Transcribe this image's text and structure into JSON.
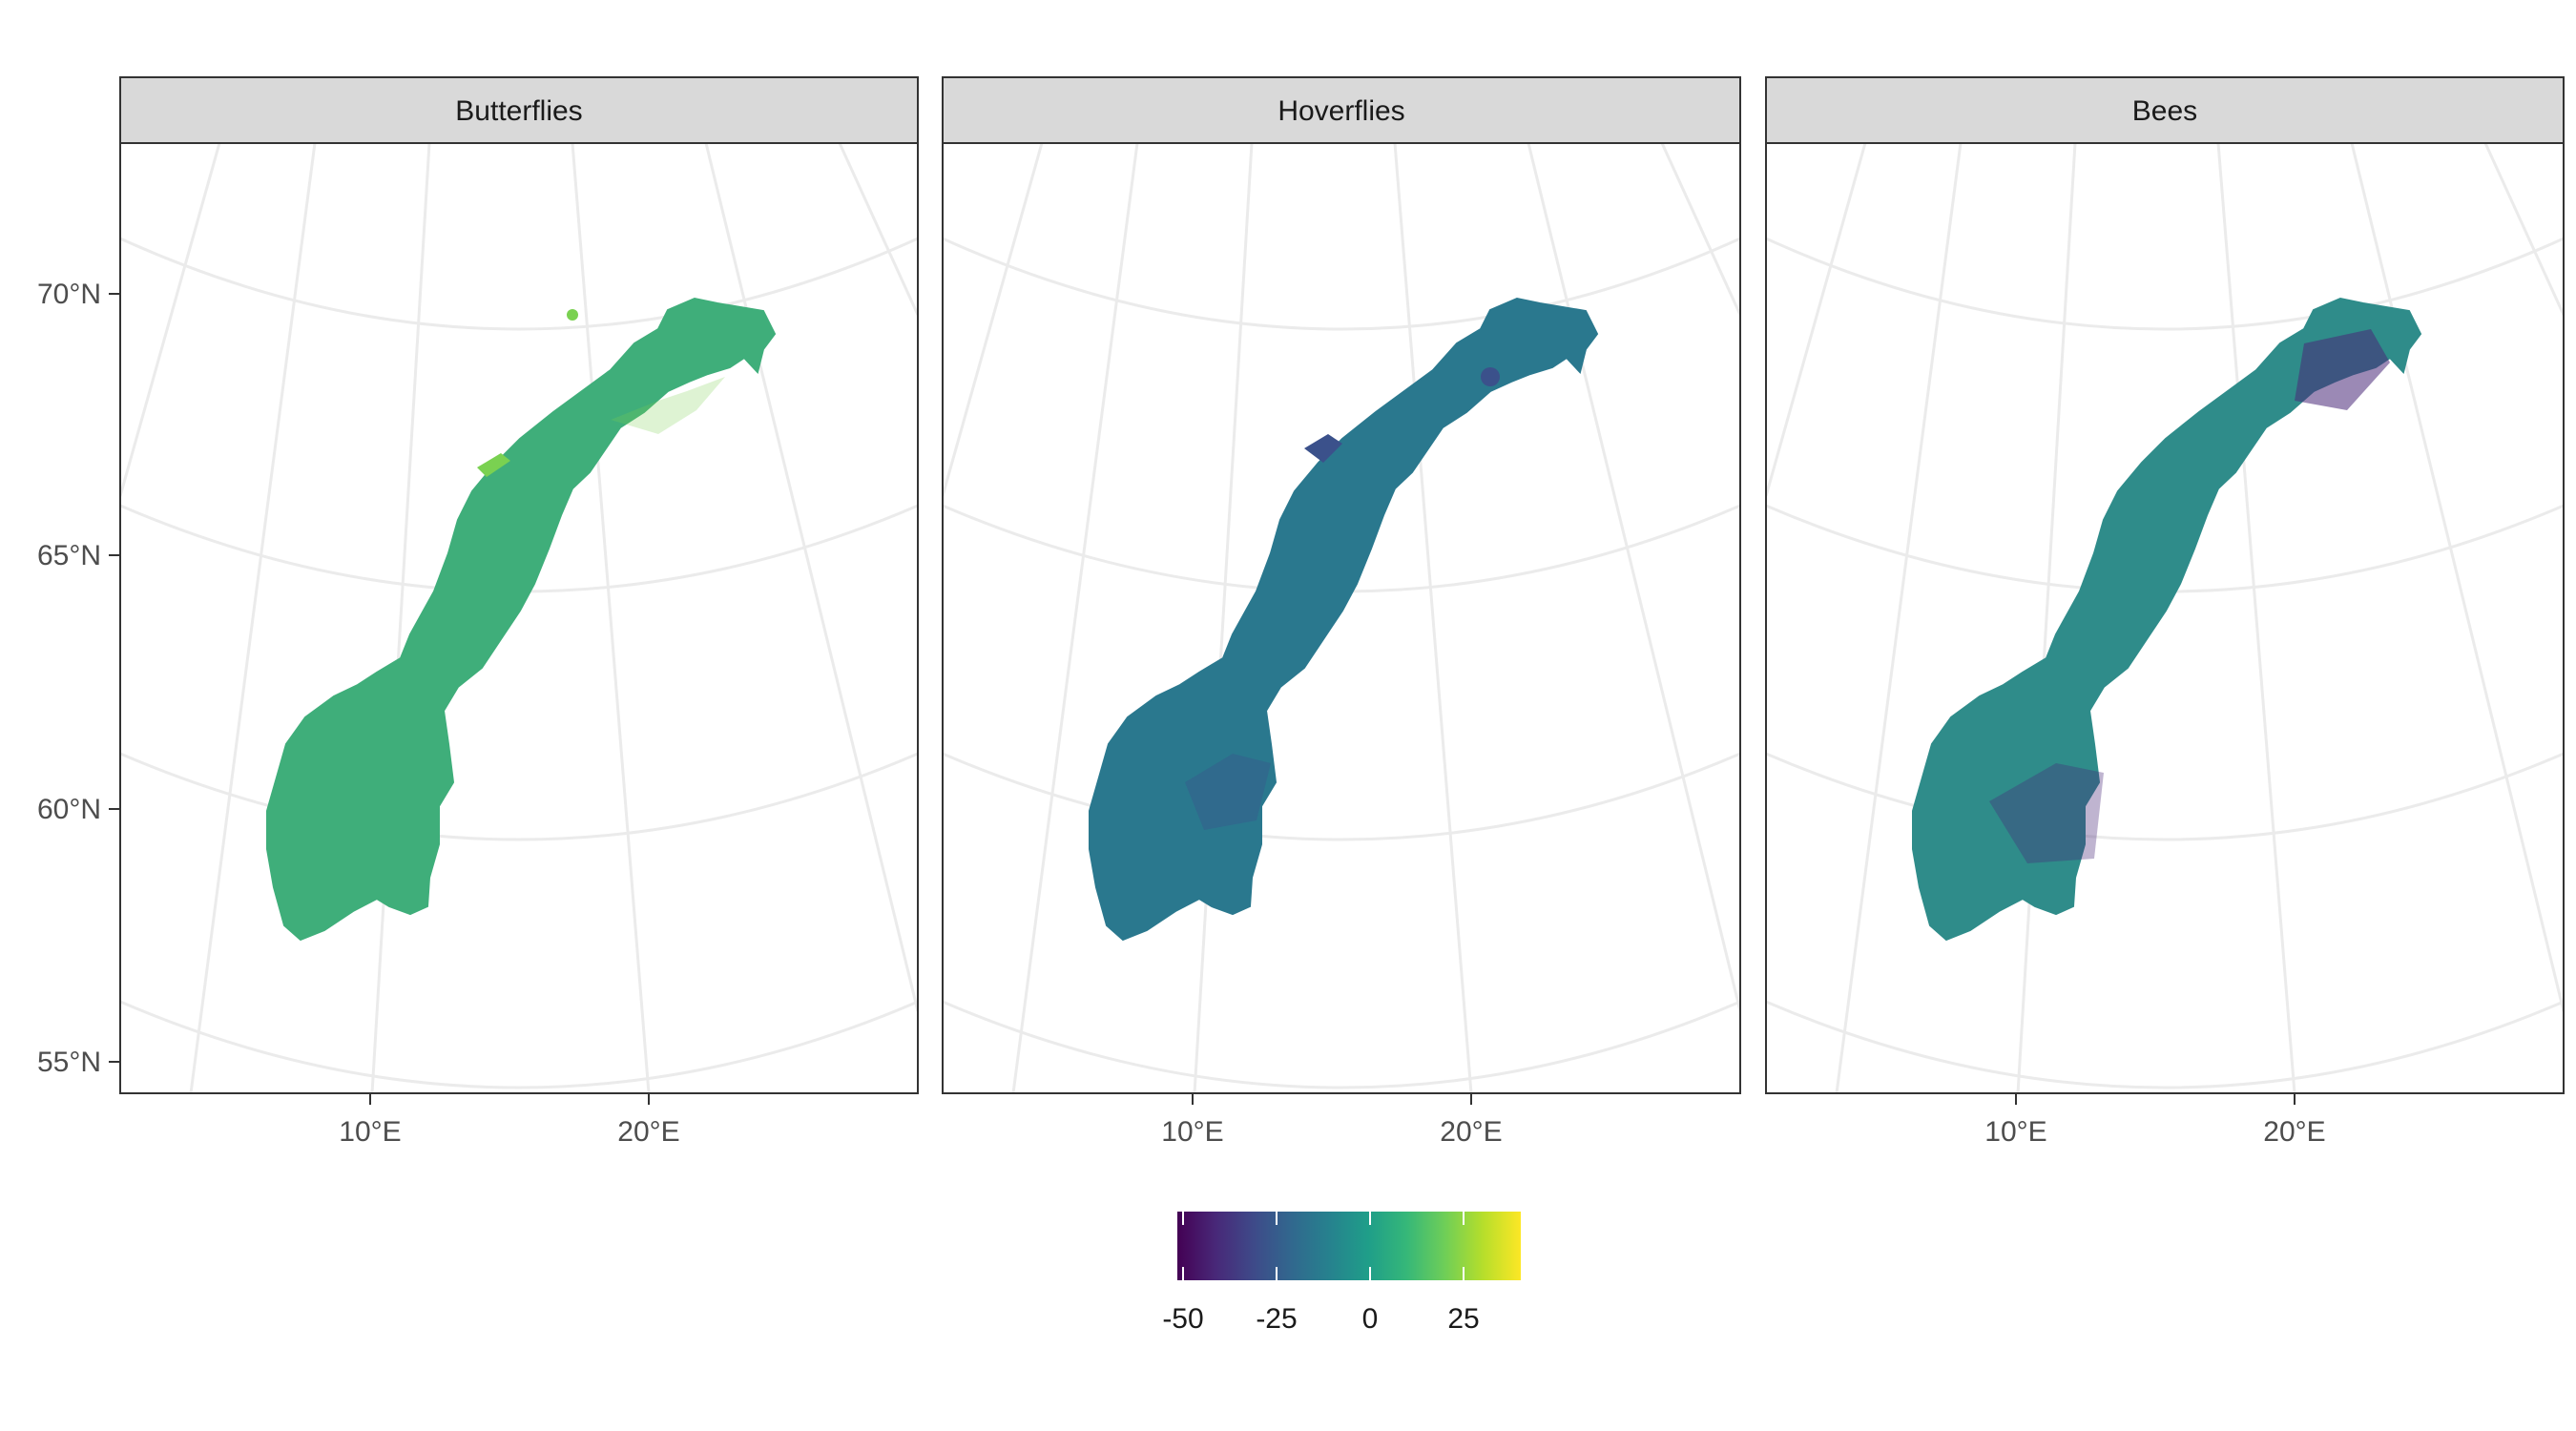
{
  "panels": [
    {
      "title": "Butterflies",
      "tint": "#3fae7a",
      "hi": "#7ad151"
    },
    {
      "title": "Hoverflies",
      "tint": "#2a788e",
      "hi": "#3b518b"
    },
    {
      "title": "Bees",
      "tint": "#2f8c8a",
      "hi": "#482878"
    }
  ],
  "axes": {
    "lat_labels": [
      "70°N",
      "65°N",
      "60°N",
      "55°N"
    ],
    "lon_labels": [
      "10°E",
      "20°E"
    ]
  },
  "legend": {
    "ticks": [
      "-50",
      "-25",
      "0",
      "25"
    ],
    "colors": [
      "#440154",
      "#482878",
      "#3e4a89",
      "#31688e",
      "#26828e",
      "#1f9e89",
      "#35b779",
      "#6ece58",
      "#b5de2b",
      "#fde725"
    ]
  }
}
